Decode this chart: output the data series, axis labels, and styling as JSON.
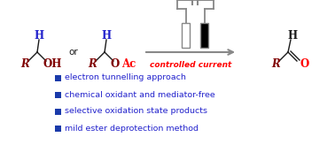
{
  "bg_color": "#ffffff",
  "dark_red": "#800000",
  "blue": "#2222CC",
  "red_text": "#FF0000",
  "black": "#1a1a1a",
  "gray": "#888888",
  "bullet_color": "#1a3aaa",
  "bullet_items": [
    "electron tunnelling approach",
    "chemical oxidant and mediator-free",
    "selective oxidation state products",
    "mild ester deprotection method"
  ],
  "controlled_current_text": "controlled current",
  "or_text": "or",
  "fs_mol": 8.5,
  "fs_or": 7.5,
  "fs_cc": 6.5,
  "fs_bullet": 6.8
}
